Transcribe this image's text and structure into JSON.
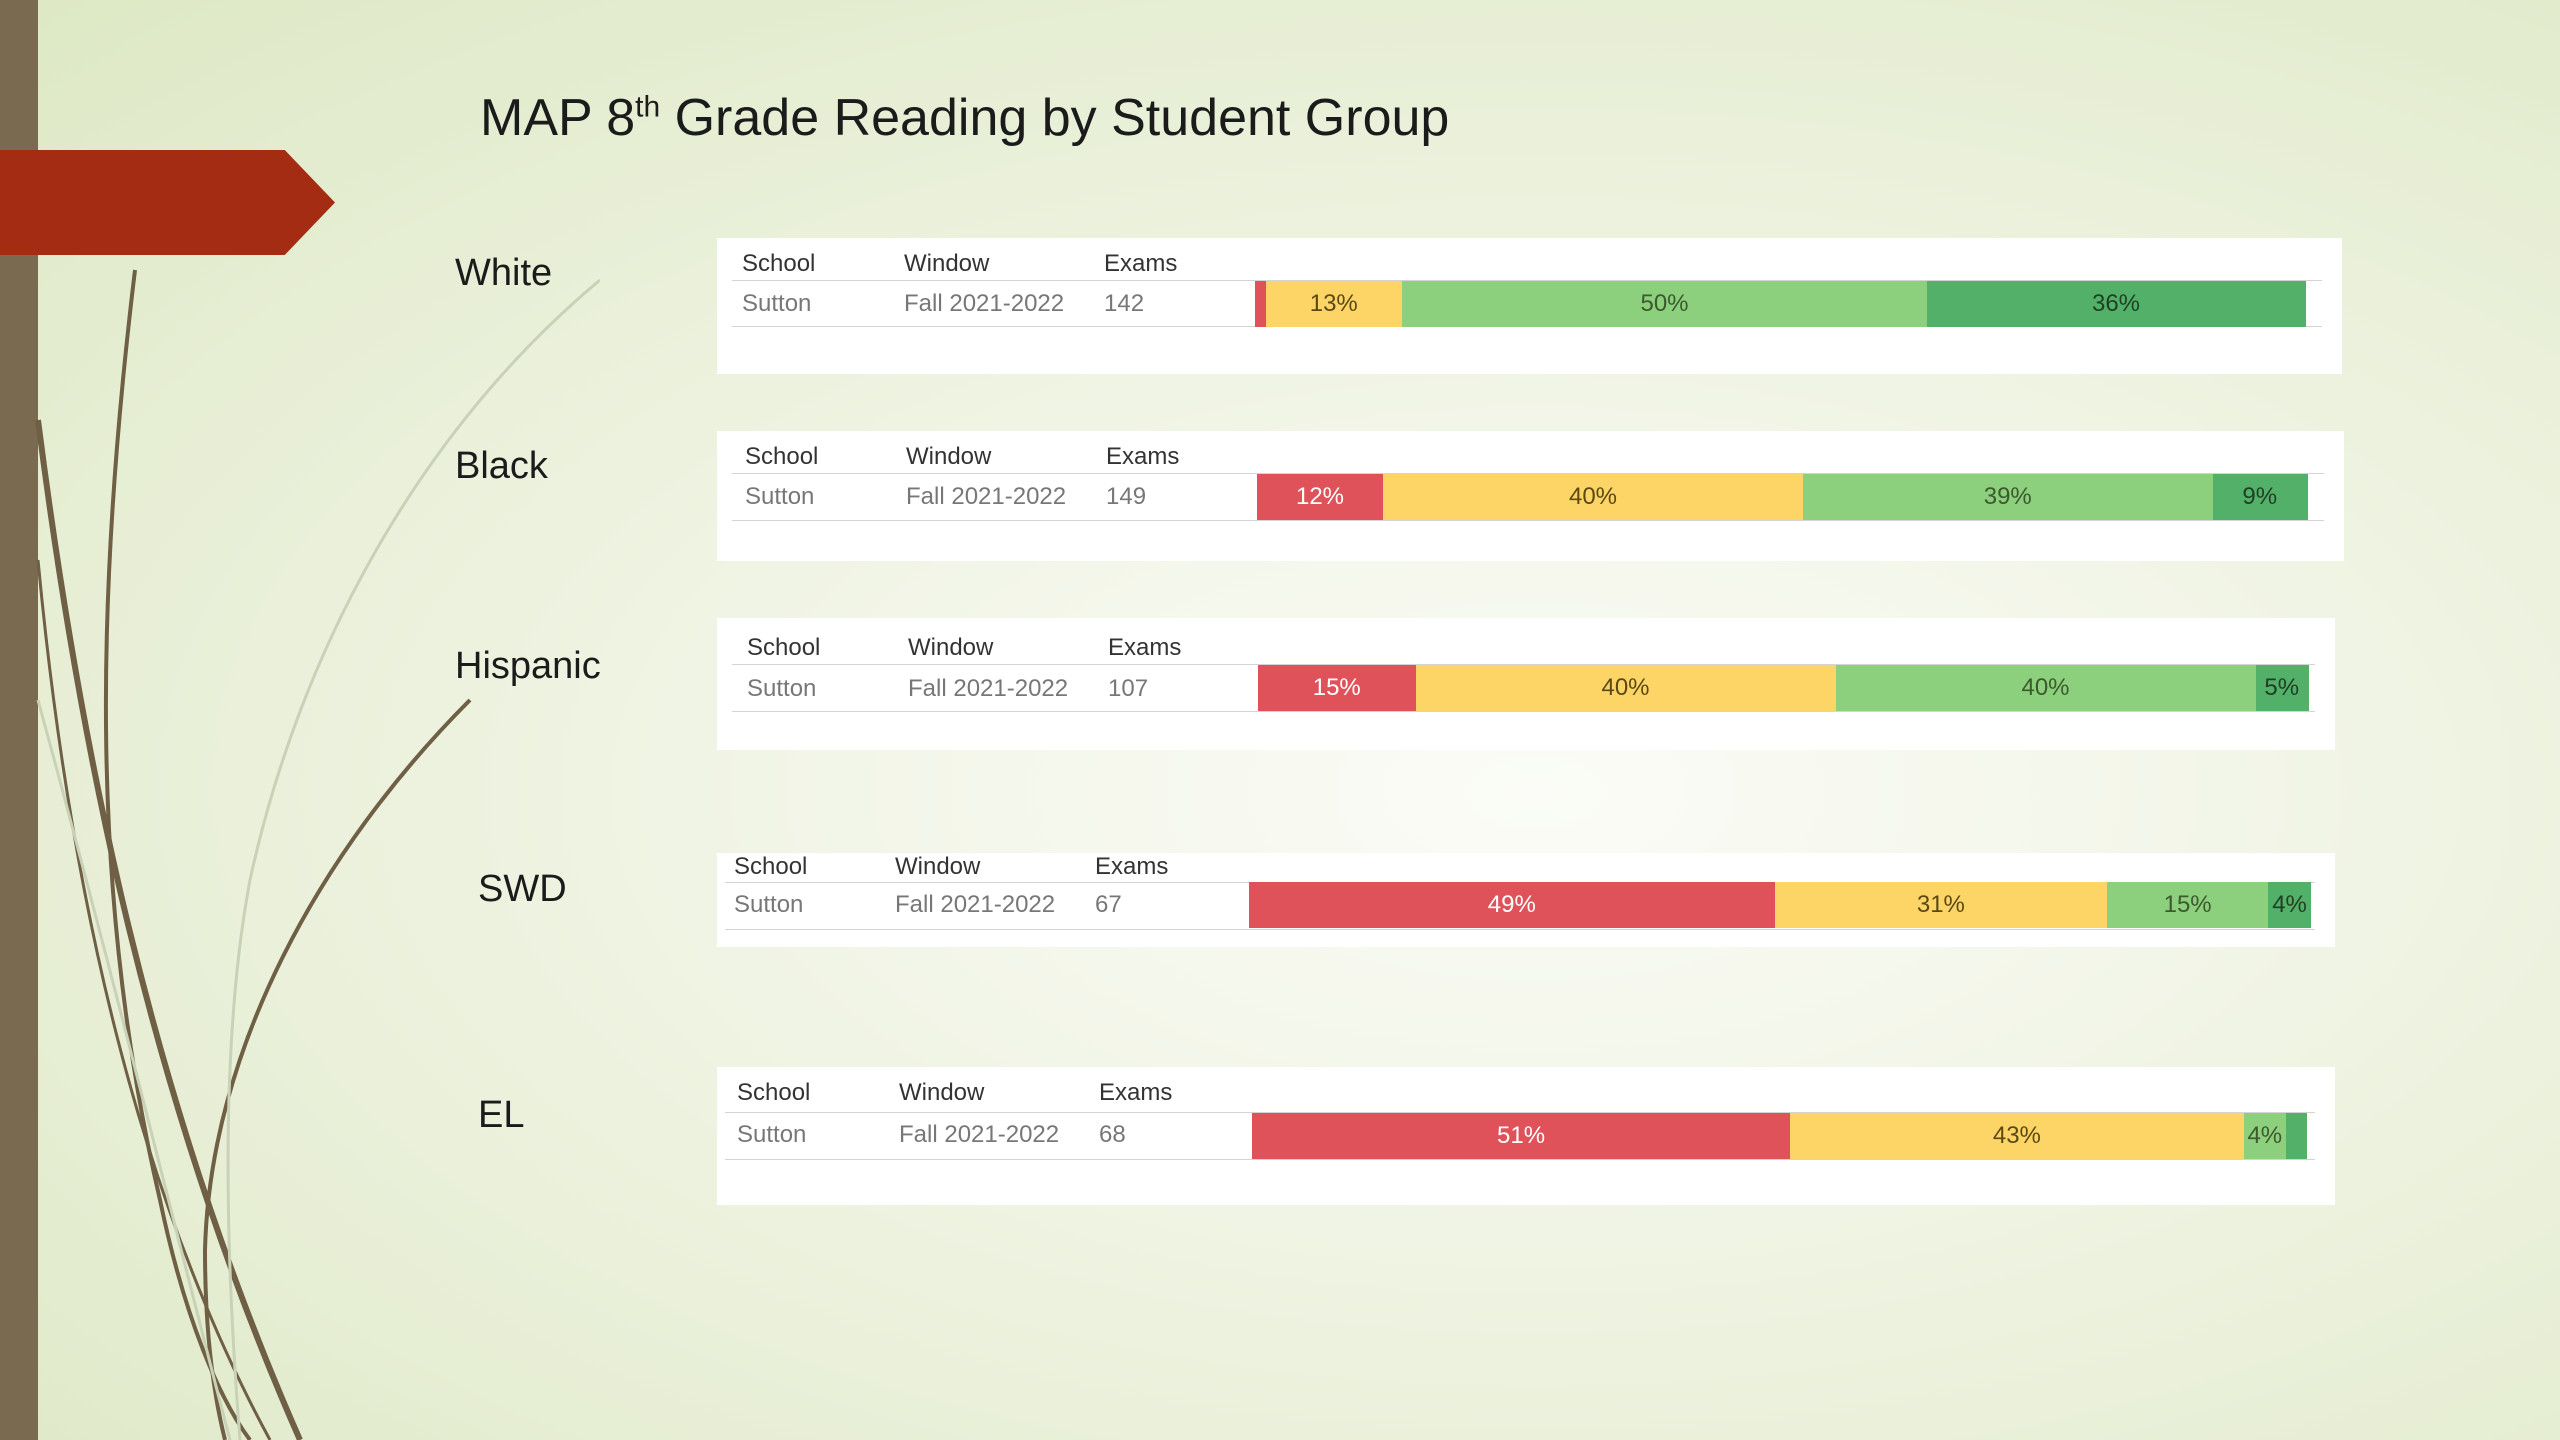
{
  "title": {
    "main": "MAP 8",
    "sup": "th",
    "rest": " Grade Reading by Student Group"
  },
  "columns": {
    "school": "School",
    "window": "Window",
    "exams": "Exams"
  },
  "colors": {
    "low": "#e0525a",
    "lowavg": "#fdd466",
    "highavg": "#8ccf7c",
    "high": "#52b068"
  },
  "chart_data": {
    "type": "bar",
    "orientation": "horizontal-stacked-100",
    "title": "MAP 8th Grade Reading by Student Group",
    "categories": [
      "White",
      "Black",
      "Hispanic",
      "SWD",
      "EL"
    ],
    "rows": [
      {
        "group": "White",
        "school": "Sutton",
        "window": "Fall 2021-2022",
        "exams": "142",
        "segments": [
          1,
          13,
          50,
          36
        ],
        "labels": [
          "",
          "13%",
          "50%",
          "36%"
        ]
      },
      {
        "group": "Black",
        "school": "Sutton",
        "window": "Fall 2021-2022",
        "exams": "149",
        "segments": [
          12,
          40,
          39,
          9
        ],
        "labels": [
          "12%",
          "40%",
          "39%",
          "9%"
        ]
      },
      {
        "group": "Hispanic",
        "school": "Sutton",
        "window": "Fall 2021-2022",
        "exams": "107",
        "segments": [
          15,
          40,
          40,
          5
        ],
        "labels": [
          "15%",
          "40%",
          "40%",
          "5%"
        ]
      },
      {
        "group": "SWD",
        "school": "Sutton",
        "window": "Fall 2021-2022",
        "exams": "67",
        "segments": [
          49,
          31,
          15,
          4
        ],
        "labels": [
          "49%",
          "31%",
          "15%",
          "4%"
        ]
      },
      {
        "group": "EL",
        "school": "Sutton",
        "window": "Fall 2021-2022",
        "exams": "68",
        "segments": [
          51,
          43,
          4,
          2
        ],
        "labels": [
          "51%",
          "43%",
          "4%",
          ""
        ]
      }
    ]
  }
}
